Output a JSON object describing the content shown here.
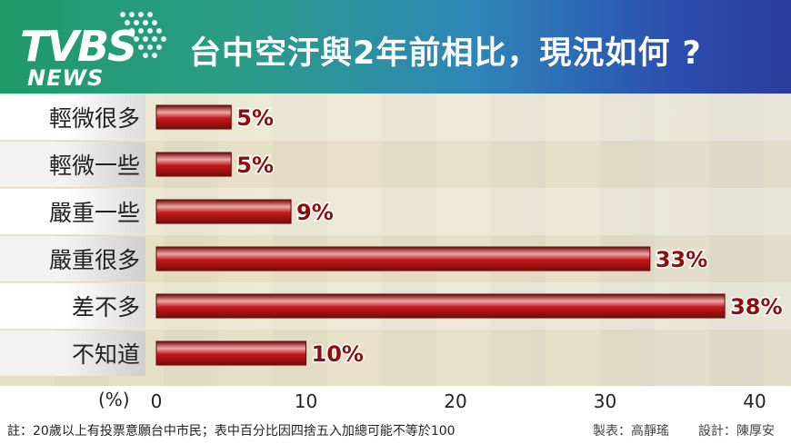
{
  "header": {
    "logo_main": "TVBS",
    "logo_sub": "NEWS",
    "title": "台中空汙與2年前相比，現況如何 ?"
  },
  "colors": {
    "header_left": "#1f9a6a",
    "header_right": "#2b3c9c",
    "bar_fill": "#b01515",
    "bar_highlight": "#f1a7a7",
    "label_color": "#8c0f0f"
  },
  "chart_data": {
    "type": "bar",
    "orientation": "horizontal",
    "title": "台中空汙與2年前相比，現況如何 ?",
    "categories": [
      "輕微很多",
      "輕微一些",
      "嚴重一些",
      "嚴重很多",
      "差不多",
      "不知道"
    ],
    "values": [
      5,
      5,
      9,
      33,
      38,
      10
    ],
    "value_labels": [
      "5%",
      "5%",
      "9%",
      "33%",
      "38%",
      "10%"
    ],
    "xlabel": "(%)",
    "xlim": [
      0,
      42
    ],
    "xticks": [
      0,
      10,
      20,
      30,
      40
    ],
    "grid": false,
    "legend": "none"
  },
  "footer": {
    "note": "註：20歲以上有投票意願台中市民；表中百分比因四捨五入加總可能不等於100",
    "maker": "製表：高靜瑤",
    "designer": "設計：陳厚安"
  }
}
